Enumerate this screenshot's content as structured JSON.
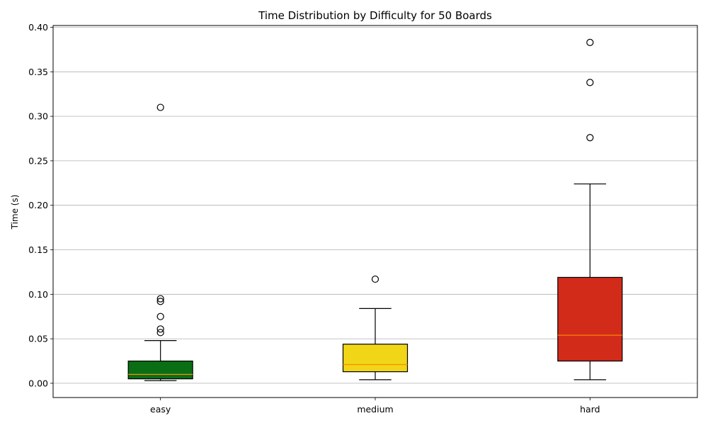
{
  "chart_data": {
    "type": "box",
    "title": "Time Distribution by Difficulty for 50 Boards",
    "xlabel": "",
    "ylabel": "Time (s)",
    "ylim": [
      -0.016,
      0.402
    ],
    "yticks": [
      "0.00",
      "0.05",
      "0.10",
      "0.15",
      "0.20",
      "0.25",
      "0.30",
      "0.35",
      "0.40"
    ],
    "grid": "horizontal",
    "categories": [
      "easy",
      "medium",
      "hard"
    ],
    "boxes": [
      {
        "category": "easy",
        "color": "#0a6e14",
        "whisker_low": 0.003,
        "q1": 0.005,
        "median": 0.01,
        "q3": 0.025,
        "whisker_high": 0.048,
        "outliers": [
          0.31,
          0.095,
          0.092,
          0.075,
          0.061,
          0.057
        ]
      },
      {
        "category": "medium",
        "color": "#f0d617",
        "whisker_low": 0.004,
        "q1": 0.013,
        "median": 0.021,
        "q3": 0.044,
        "whisker_high": 0.084,
        "outliers": [
          0.117
        ]
      },
      {
        "category": "hard",
        "color": "#d22b1a",
        "whisker_low": 0.004,
        "q1": 0.025,
        "median": 0.054,
        "q3": 0.119,
        "whisker_high": 0.224,
        "outliers": [
          0.383,
          0.338,
          0.276
        ]
      }
    ],
    "median_color": "#ff8c00"
  }
}
